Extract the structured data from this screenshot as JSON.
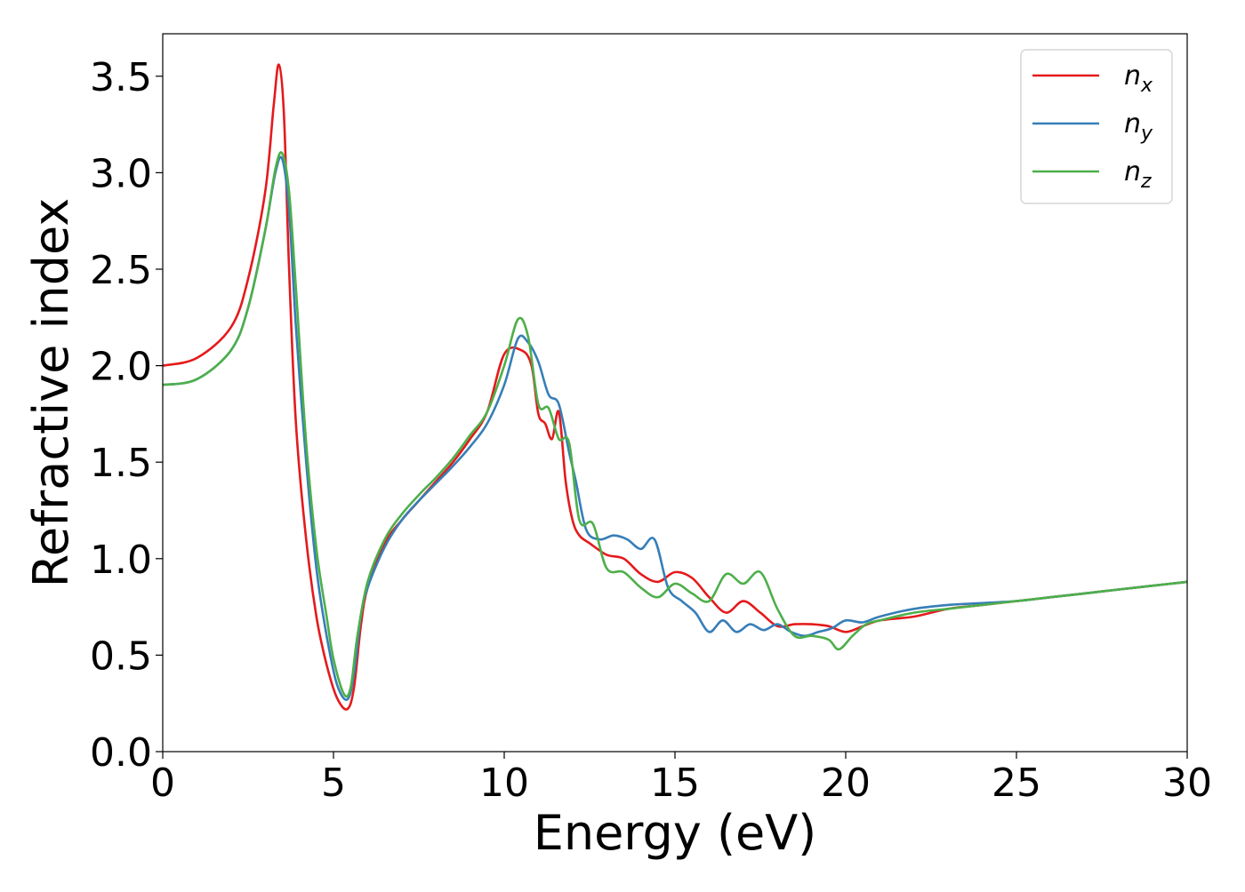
{
  "chart_data": {
    "type": "line",
    "title": "",
    "xlabel": "Energy (eV)",
    "ylabel": "Refractive index",
    "xlim": [
      0,
      30
    ],
    "ylim": [
      0,
      3.72
    ],
    "xticks": [
      0,
      5,
      10,
      15,
      20,
      25,
      30
    ],
    "xtick_labels": [
      "0",
      "5",
      "10",
      "15",
      "20",
      "25",
      "30"
    ],
    "yticks": [
      0.0,
      0.5,
      1.0,
      1.5,
      2.0,
      2.5,
      3.0,
      3.5
    ],
    "ytick_labels": [
      "0.0",
      "0.5",
      "1.0",
      "1.5",
      "2.0",
      "2.5",
      "3.0",
      "3.5"
    ],
    "grid": false,
    "legend_position": "top-right",
    "series": [
      {
        "name": "n_x",
        "label_base": "n",
        "label_sub": "x",
        "color": "#e41a1c",
        "x": [
          0,
          1,
          2,
          2.5,
          3.0,
          3.25,
          3.4,
          3.55,
          3.7,
          3.9,
          4.2,
          4.5,
          4.8,
          5.1,
          5.4,
          5.6,
          5.8,
          6.0,
          6.5,
          7,
          7.5,
          8,
          8.5,
          9,
          9.5,
          10,
          10.5,
          10.8,
          11.0,
          11.2,
          11.4,
          11.6,
          11.8,
          12.0,
          12.2,
          12.5,
          13.0,
          13.5,
          14.0,
          14.5,
          15.0,
          15.5,
          16.0,
          16.5,
          17.0,
          17.5,
          18.0,
          18.5,
          19.0,
          19.5,
          20.0,
          20.5,
          21,
          22,
          23,
          24,
          25,
          26,
          27,
          28,
          29,
          30
        ],
        "y": [
          2.0,
          2.04,
          2.2,
          2.45,
          2.9,
          3.35,
          3.56,
          3.3,
          2.5,
          1.7,
          1.1,
          0.7,
          0.45,
          0.28,
          0.22,
          0.33,
          0.65,
          0.85,
          1.08,
          1.2,
          1.3,
          1.4,
          1.5,
          1.62,
          1.76,
          2.06,
          2.08,
          2.0,
          1.75,
          1.7,
          1.62,
          1.76,
          1.4,
          1.2,
          1.12,
          1.08,
          1.02,
          1.0,
          0.92,
          0.88,
          0.93,
          0.9,
          0.8,
          0.72,
          0.78,
          0.72,
          0.65,
          0.66,
          0.66,
          0.65,
          0.62,
          0.65,
          0.68,
          0.7,
          0.74,
          0.76,
          0.78,
          0.8,
          0.82,
          0.84,
          0.86,
          0.88
        ]
      },
      {
        "name": "n_y",
        "label_base": "n",
        "label_sub": "y",
        "color": "#377eb8",
        "x": [
          0,
          1,
          2,
          2.5,
          3.0,
          3.3,
          3.5,
          3.7,
          3.9,
          4.2,
          4.5,
          4.8,
          5.1,
          5.4,
          5.6,
          5.8,
          6.0,
          6.5,
          7,
          7.5,
          8,
          8.5,
          9,
          9.5,
          10,
          10.4,
          10.7,
          11.0,
          11.3,
          11.6,
          11.9,
          12.1,
          12.4,
          12.8,
          13.2,
          13.6,
          14.0,
          14.4,
          14.8,
          15.2,
          15.6,
          16.0,
          16.4,
          16.8,
          17.2,
          17.6,
          18.0,
          18.4,
          18.8,
          19.2,
          19.6,
          20.0,
          20.5,
          21,
          22,
          23,
          24,
          25,
          26,
          27,
          28,
          29,
          30
        ],
        "y": [
          1.9,
          1.93,
          2.08,
          2.3,
          2.7,
          3.0,
          3.07,
          2.8,
          2.2,
          1.5,
          0.95,
          0.6,
          0.35,
          0.27,
          0.4,
          0.7,
          0.85,
          1.06,
          1.2,
          1.3,
          1.39,
          1.48,
          1.58,
          1.7,
          1.9,
          2.14,
          2.12,
          2.02,
          1.85,
          1.8,
          1.55,
          1.4,
          1.15,
          1.1,
          1.12,
          1.1,
          1.05,
          1.1,
          0.85,
          0.78,
          0.72,
          0.62,
          0.68,
          0.62,
          0.66,
          0.63,
          0.66,
          0.62,
          0.6,
          0.62,
          0.64,
          0.68,
          0.67,
          0.7,
          0.74,
          0.76,
          0.77,
          0.78,
          0.8,
          0.82,
          0.84,
          0.86,
          0.88
        ]
      },
      {
        "name": "n_z",
        "label_base": "n",
        "label_sub": "z",
        "color": "#4daf4a",
        "x": [
          0,
          1,
          2,
          2.5,
          3.0,
          3.3,
          3.5,
          3.7,
          3.9,
          4.2,
          4.5,
          4.8,
          5.0,
          5.3,
          5.5,
          5.7,
          6.0,
          6.5,
          7,
          7.5,
          8,
          8.5,
          9,
          9.5,
          10,
          10.4,
          10.7,
          11.0,
          11.3,
          11.6,
          11.9,
          12.2,
          12.6,
          13.0,
          13.5,
          14.0,
          14.5,
          15.0,
          15.5,
          16.0,
          16.5,
          17.0,
          17.5,
          18.0,
          18.5,
          19.0,
          19.5,
          19.8,
          20.2,
          20.6,
          21,
          22,
          23,
          24,
          25,
          26,
          27,
          28,
          29,
          30
        ],
        "y": [
          1.9,
          1.93,
          2.08,
          2.3,
          2.7,
          3.02,
          3.1,
          2.9,
          2.4,
          1.6,
          1.05,
          0.7,
          0.48,
          0.3,
          0.33,
          0.6,
          0.88,
          1.1,
          1.23,
          1.33,
          1.42,
          1.52,
          1.64,
          1.76,
          2.0,
          2.24,
          2.15,
          1.8,
          1.78,
          1.62,
          1.6,
          1.2,
          1.18,
          0.95,
          0.93,
          0.85,
          0.8,
          0.87,
          0.82,
          0.78,
          0.92,
          0.87,
          0.93,
          0.74,
          0.6,
          0.6,
          0.58,
          0.53,
          0.6,
          0.66,
          0.68,
          0.72,
          0.74,
          0.76,
          0.78,
          0.8,
          0.82,
          0.84,
          0.86,
          0.88
        ]
      }
    ]
  }
}
